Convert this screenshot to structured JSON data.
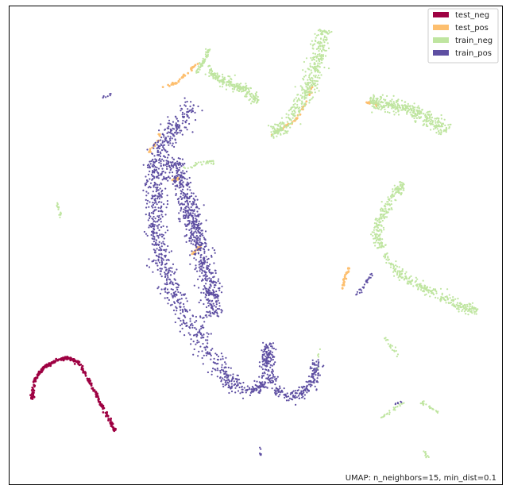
{
  "chart_data": {
    "type": "scatter",
    "title": "",
    "xlabel": "",
    "ylabel": "",
    "axes_ticks": false,
    "grid": false,
    "xlim": [
      0,
      100
    ],
    "ylim": [
      0,
      100
    ],
    "legend": {
      "placement": "top-right"
    },
    "annotation": {
      "text": "UMAP: n_neighbors=15, min_dist=0.1",
      "placement": "bottom-right"
    },
    "series": [
      {
        "name": "test_neg",
        "color": "#9e0142",
        "clusters": [
          {
            "shape": "curve",
            "path": [
              [
                4.5,
                17.5
              ],
              [
                5.2,
                22
              ],
              [
                7,
                24.5
              ],
              [
                9.5,
                26
              ],
              [
                12,
                26.5
              ],
              [
                14,
                25.5
              ],
              [
                16.5,
                21
              ],
              [
                19,
                16
              ],
              [
                21.5,
                11
              ]
            ],
            "points": 260
          }
        ]
      },
      {
        "name": "test_pos",
        "color": "#fdbf6f",
        "clusters": [
          {
            "shape": "curve",
            "path": [
              [
                53,
                73
              ],
              [
                55.5,
                74.5
              ],
              [
                58.5,
                76.5
              ],
              [
                60,
                79.5
              ],
              [
                61.5,
                83
              ]
            ],
            "points": 40
          },
          {
            "shape": "curve",
            "path": [
              [
                72.5,
                80
              ],
              [
                75,
                79.5
              ]
            ],
            "points": 20
          },
          {
            "shape": "curve",
            "path": [
              [
                67.5,
                40.5
              ],
              [
                68,
                43
              ],
              [
                69,
                45.5
              ]
            ],
            "points": 30
          },
          {
            "shape": "curve",
            "path": [
              [
                31,
                83
              ],
              [
                34,
                84
              ],
              [
                36,
                86
              ],
              [
                38,
                88
              ]
            ],
            "points": 35
          },
          {
            "shape": "curve",
            "path": [
              [
                28,
                69
              ],
              [
                29.5,
                71
              ],
              [
                30.5,
                73.5
              ]
            ],
            "points": 15
          },
          {
            "shape": "curve",
            "path": [
              [
                32.5,
                63.5
              ],
              [
                34.5,
                64
              ]
            ],
            "points": 8
          },
          {
            "shape": "curve",
            "path": [
              [
                37,
                48
              ],
              [
                39,
                50
              ]
            ],
            "points": 12
          }
        ]
      },
      {
        "name": "train_neg",
        "color": "#bfe5a0",
        "clusters": [
          {
            "shape": "band",
            "path": [
              [
                64,
                95
              ],
              [
                63,
                91
              ],
              [
                62.5,
                87
              ],
              [
                61,
                84
              ],
              [
                59,
                80
              ],
              [
                56,
                75
              ],
              [
                53,
                73
              ]
            ],
            "width": 1.6,
            "points": 420
          },
          {
            "shape": "band",
            "path": [
              [
                73,
                80
              ],
              [
                77,
                79.5
              ],
              [
                81,
                78.5
              ],
              [
                85,
                76.5
              ],
              [
                89,
                74
              ]
            ],
            "width": 1.5,
            "points": 380
          },
          {
            "shape": "band",
            "path": [
              [
                40,
                87
              ],
              [
                43,
                84.5
              ],
              [
                46,
                83.5
              ],
              [
                48.5,
                82
              ],
              [
                50.5,
                80
              ]
            ],
            "width": 1.0,
            "points": 240
          },
          {
            "shape": "band",
            "path": [
              [
                40.5,
                91
              ],
              [
                39.5,
                88.5
              ],
              [
                38,
                86
              ]
            ],
            "width": 0.5,
            "points": 60
          },
          {
            "shape": "band",
            "path": [
              [
                80,
                63
              ],
              [
                78.5,
                61.5
              ],
              [
                76.5,
                58
              ],
              [
                75,
                55
              ],
              [
                74.5,
                52
              ],
              [
                75.5,
                49.5
              ]
            ],
            "width": 1.0,
            "points": 220
          },
          {
            "shape": "band",
            "path": [
              [
                76,
                48
              ],
              [
                79,
                44
              ],
              [
                82.5,
                42
              ],
              [
                87,
                39.5
              ],
              [
                92,
                37
              ],
              [
                95,
                36.5
              ]
            ],
            "width": 1.0,
            "points": 280
          },
          {
            "shape": "band",
            "path": [
              [
                34,
                66
              ],
              [
                37,
                66.5
              ],
              [
                40,
                67.5
              ],
              [
                41.5,
                67.5
              ]
            ],
            "width": 0.4,
            "points": 40
          },
          {
            "shape": "band",
            "path": [
              [
                9.5,
                59
              ],
              [
                10.5,
                56
              ]
            ],
            "width": 0.3,
            "points": 15
          },
          {
            "shape": "band",
            "path": [
              [
                76,
                31
              ],
              [
                79,
                27
              ]
            ],
            "width": 0.3,
            "points": 20
          },
          {
            "shape": "band",
            "path": [
              [
                75.5,
                14
              ],
              [
                80,
                17
              ]
            ],
            "width": 0.3,
            "points": 25
          },
          {
            "shape": "band",
            "path": [
              [
                83,
                17.5
              ],
              [
                87,
                15
              ]
            ],
            "width": 0.3,
            "points": 25
          },
          {
            "shape": "band",
            "path": [
              [
                84,
                7
              ],
              [
                85,
                5.5
              ]
            ],
            "width": 0.3,
            "points": 10
          },
          {
            "shape": "band",
            "path": [
              [
                62.5,
                24
              ],
              [
                62.7,
                28.5
              ]
            ],
            "width": 0.3,
            "points": 10
          }
        ]
      },
      {
        "name": "train_pos",
        "color": "#5e4fa2",
        "clusters": [
          {
            "shape": "band",
            "path": [
              [
                37.5,
                80
              ],
              [
                34,
                75
              ],
              [
                31.5,
                72
              ],
              [
                30,
                68
              ],
              [
                29.5,
                64
              ],
              [
                30,
                59.5
              ],
              [
                29.5,
                55
              ],
              [
                29.5,
                50.5
              ],
              [
                31,
                46
              ],
              [
                33,
                41
              ],
              [
                35,
                36.5
              ],
              [
                38,
                31.5
              ],
              [
                41.5,
                26
              ],
              [
                44,
                22
              ],
              [
                46.5,
                20
              ]
            ],
            "width": 2.2,
            "points": 900
          },
          {
            "shape": "band",
            "path": [
              [
                33,
                68
              ],
              [
                35,
                63
              ],
              [
                36.5,
                58
              ],
              [
                37.5,
                54
              ],
              [
                38.5,
                50
              ],
              [
                40,
                45
              ],
              [
                41,
                40
              ],
              [
                41.5,
                35
              ]
            ],
            "width": 2.0,
            "points": 700
          },
          {
            "shape": "band",
            "path": [
              [
                46.5,
                20
              ],
              [
                50,
                19.5
              ],
              [
                51.5,
                21
              ],
              [
                52,
                24.5
              ],
              [
                52.5,
                27
              ],
              [
                52.5,
                29.5
              ]
            ],
            "width": 1.2,
            "points": 180
          },
          {
            "shape": "band",
            "path": [
              [
                52.5,
                28
              ],
              [
                54,
                20
              ],
              [
                57,
                18
              ],
              [
                60,
                19.5
              ],
              [
                62,
                22
              ],
              [
                62.5,
                26
              ]
            ],
            "width": 1.2,
            "points": 240
          },
          {
            "shape": "band",
            "path": [
              [
                70.5,
                39.5
              ],
              [
                72,
                41.5
              ],
              [
                73.5,
                44
              ]
            ],
            "width": 0.4,
            "points": 25
          },
          {
            "shape": "band",
            "path": [
              [
                19,
                81
              ],
              [
                20.5,
                81.5
              ]
            ],
            "width": 0.2,
            "points": 8
          },
          {
            "shape": "band",
            "path": [
              [
                51,
                6
              ],
              [
                51,
                8
              ]
            ],
            "width": 0.2,
            "points": 6
          },
          {
            "shape": "band",
            "path": [
              [
                78,
                16.5
              ],
              [
                80,
                17.5
              ]
            ],
            "width": 0.2,
            "points": 6
          }
        ]
      }
    ]
  }
}
